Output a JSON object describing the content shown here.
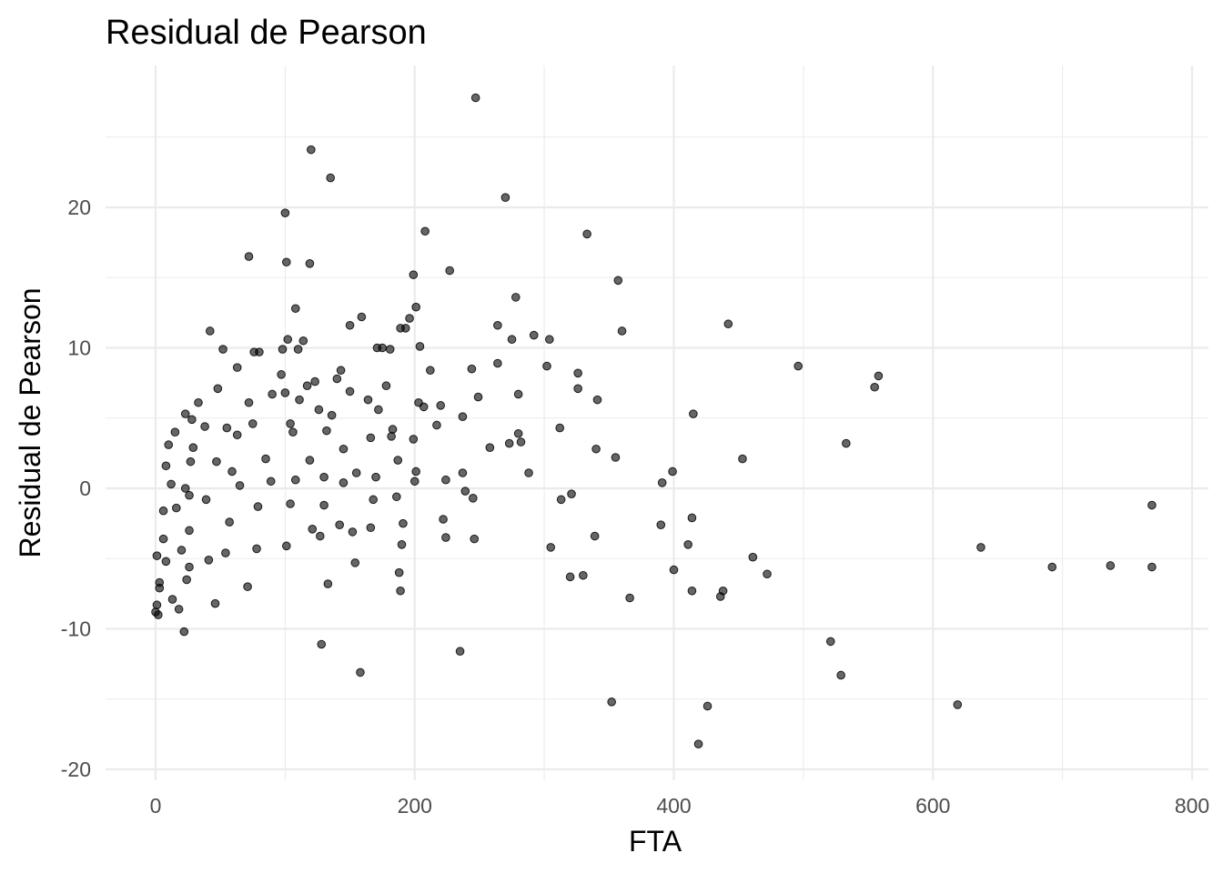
{
  "chart_data": {
    "type": "scatter",
    "title": "Residual de Pearson",
    "xlabel": "FTA",
    "ylabel": "Residual de Pearson",
    "xlim": [
      -40,
      800
    ],
    "ylim": [
      -21,
      28.5
    ],
    "x_ticks": [
      0,
      200,
      400,
      600,
      800
    ],
    "x_tick_labels": [
      "0",
      "200",
      "400",
      "600",
      "800"
    ],
    "y_ticks": [
      -20,
      -10,
      0,
      10,
      20
    ],
    "y_tick_labels": [
      "-20",
      "-10",
      "0",
      "10",
      "20"
    ],
    "grid": true,
    "legend": "none",
    "point_color": "#000000",
    "point_alpha": 0.6,
    "points": [
      [
        247,
        27.8
      ],
      [
        120,
        24.1
      ],
      [
        135,
        22.1
      ],
      [
        270,
        20.7
      ],
      [
        100,
        19.6
      ],
      [
        208,
        18.3
      ],
      [
        333,
        18.1
      ],
      [
        72,
        16.5
      ],
      [
        101,
        16.1
      ],
      [
        119,
        16.0
      ],
      [
        227,
        15.5
      ],
      [
        199,
        15.2
      ],
      [
        357,
        14.8
      ],
      [
        278,
        13.6
      ],
      [
        201,
        12.9
      ],
      [
        108,
        12.8
      ],
      [
        159,
        12.2
      ],
      [
        196,
        12.1
      ],
      [
        150,
        11.6
      ],
      [
        264,
        11.6
      ],
      [
        442,
        11.7
      ],
      [
        360,
        11.2
      ],
      [
        42,
        11.2
      ],
      [
        189,
        11.4
      ],
      [
        193,
        11.4
      ],
      [
        292,
        10.9
      ],
      [
        102,
        10.6
      ],
      [
        114,
        10.5
      ],
      [
        275,
        10.6
      ],
      [
        304,
        10.6
      ],
      [
        204,
        10.1
      ],
      [
        171,
        10.0
      ],
      [
        110,
        9.9
      ],
      [
        98,
        9.9
      ],
      [
        175,
        10.0
      ],
      [
        181,
        9.9
      ],
      [
        52,
        9.9
      ],
      [
        76,
        9.7
      ],
      [
        80,
        9.7
      ],
      [
        264,
        8.9
      ],
      [
        496,
        8.7
      ],
      [
        302,
        8.7
      ],
      [
        244,
        8.5
      ],
      [
        63,
        8.6
      ],
      [
        143,
        8.4
      ],
      [
        212,
        8.4
      ],
      [
        558,
        8.0
      ],
      [
        326,
        8.2
      ],
      [
        97,
        8.1
      ],
      [
        140,
        7.8
      ],
      [
        123,
        7.6
      ],
      [
        555,
        7.2
      ],
      [
        117,
        7.3
      ],
      [
        178,
        7.3
      ],
      [
        48,
        7.1
      ],
      [
        326,
        7.1
      ],
      [
        150,
        6.9
      ],
      [
        100,
        6.8
      ],
      [
        280,
        6.7
      ],
      [
        90,
        6.7
      ],
      [
        249,
        6.5
      ],
      [
        341,
        6.3
      ],
      [
        111,
        6.3
      ],
      [
        164,
        6.3
      ],
      [
        203,
        6.1
      ],
      [
        72,
        6.1
      ],
      [
        33,
        6.1
      ],
      [
        220,
        5.9
      ],
      [
        207,
        5.8
      ],
      [
        172,
        5.6
      ],
      [
        126,
        5.6
      ],
      [
        415,
        5.3
      ],
      [
        23,
        5.3
      ],
      [
        136,
        5.2
      ],
      [
        237,
        5.1
      ],
      [
        28,
        4.9
      ],
      [
        75,
        4.6
      ],
      [
        104,
        4.6
      ],
      [
        217,
        4.5
      ],
      [
        38,
        4.4
      ],
      [
        55,
        4.3
      ],
      [
        312,
        4.3
      ],
      [
        183,
        4.2
      ],
      [
        132,
        4.1
      ],
      [
        106,
        4.0
      ],
      [
        280,
        3.9
      ],
      [
        15,
        4.0
      ],
      [
        63,
        3.8
      ],
      [
        182,
        3.7
      ],
      [
        166,
        3.6
      ],
      [
        199,
        3.5
      ],
      [
        533,
        3.2
      ],
      [
        273,
        3.2
      ],
      [
        282,
        3.3
      ],
      [
        10,
        3.1
      ],
      [
        29,
        2.9
      ],
      [
        258,
        2.9
      ],
      [
        340,
        2.8
      ],
      [
        355,
        2.2
      ],
      [
        145,
        2.8
      ],
      [
        453,
        2.1
      ],
      [
        85,
        2.1
      ],
      [
        119,
        2.0
      ],
      [
        187,
        2.0
      ],
      [
        27,
        1.9
      ],
      [
        47,
        1.9
      ],
      [
        8,
        1.6
      ],
      [
        288,
        1.1
      ],
      [
        399,
        1.2
      ],
      [
        59,
        1.2
      ],
      [
        237,
        1.1
      ],
      [
        155,
        1.1
      ],
      [
        201,
        1.2
      ],
      [
        108,
        0.6
      ],
      [
        170,
        0.8
      ],
      [
        130,
        0.8
      ],
      [
        89,
        0.5
      ],
      [
        391,
        0.4
      ],
      [
        12,
        0.3
      ],
      [
        224,
        0.6
      ],
      [
        23,
        0.0
      ],
      [
        65,
        0.2
      ],
      [
        239,
        -0.2
      ],
      [
        321,
        -0.4
      ],
      [
        200,
        0.5
      ],
      [
        26,
        -0.5
      ],
      [
        145,
        0.4
      ],
      [
        186,
        -0.6
      ],
      [
        168,
        -0.8
      ],
      [
        39,
        -0.8
      ],
      [
        313,
        -0.8
      ],
      [
        245,
        -0.7
      ],
      [
        104,
        -1.1
      ],
      [
        130,
        -1.2
      ],
      [
        769,
        -1.2
      ],
      [
        79,
        -1.3
      ],
      [
        16,
        -1.4
      ],
      [
        6,
        -1.6
      ],
      [
        414,
        -2.1
      ],
      [
        222,
        -2.2
      ],
      [
        57,
        -2.4
      ],
      [
        142,
        -2.6
      ],
      [
        390,
        -2.6
      ],
      [
        166,
        -2.8
      ],
      [
        121,
        -2.9
      ],
      [
        191,
        -2.5
      ],
      [
        152,
        -3.1
      ],
      [
        26,
        -3.0
      ],
      [
        127,
        -3.4
      ],
      [
        339,
        -3.4
      ],
      [
        224,
        -3.5
      ],
      [
        246,
        -3.6
      ],
      [
        6,
        -3.6
      ],
      [
        411,
        -4.0
      ],
      [
        101,
        -4.1
      ],
      [
        190,
        -4.0
      ],
      [
        637,
        -4.2
      ],
      [
        305,
        -4.2
      ],
      [
        78,
        -4.3
      ],
      [
        20,
        -4.4
      ],
      [
        54,
        -4.6
      ],
      [
        1,
        -4.8
      ],
      [
        461,
        -4.9
      ],
      [
        41,
        -5.1
      ],
      [
        8,
        -5.2
      ],
      [
        154,
        -5.3
      ],
      [
        26,
        -5.6
      ],
      [
        692,
        -5.6
      ],
      [
        737,
        -5.5
      ],
      [
        769,
        -5.6
      ],
      [
        400,
        -5.8
      ],
      [
        188,
        -6.0
      ],
      [
        472,
        -6.1
      ],
      [
        320,
        -6.3
      ],
      [
        330,
        -6.2
      ],
      [
        24,
        -6.5
      ],
      [
        3,
        -6.7
      ],
      [
        133,
        -6.8
      ],
      [
        71,
        -7.0
      ],
      [
        3,
        -7.1
      ],
      [
        414,
        -7.3
      ],
      [
        438,
        -7.3
      ],
      [
        189,
        -7.3
      ],
      [
        436,
        -7.7
      ],
      [
        366,
        -7.8
      ],
      [
        13,
        -7.9
      ],
      [
        46,
        -8.2
      ],
      [
        1,
        -8.3
      ],
      [
        18,
        -8.6
      ],
      [
        0,
        -8.8
      ],
      [
        2,
        -9.0
      ],
      [
        22,
        -10.2
      ],
      [
        521,
        -10.9
      ],
      [
        128,
        -11.1
      ],
      [
        235,
        -11.6
      ],
      [
        529,
        -13.3
      ],
      [
        158,
        -13.1
      ],
      [
        352,
        -15.2
      ],
      [
        426,
        -15.5
      ],
      [
        619,
        -15.4
      ],
      [
        419,
        -18.2
      ]
    ]
  }
}
